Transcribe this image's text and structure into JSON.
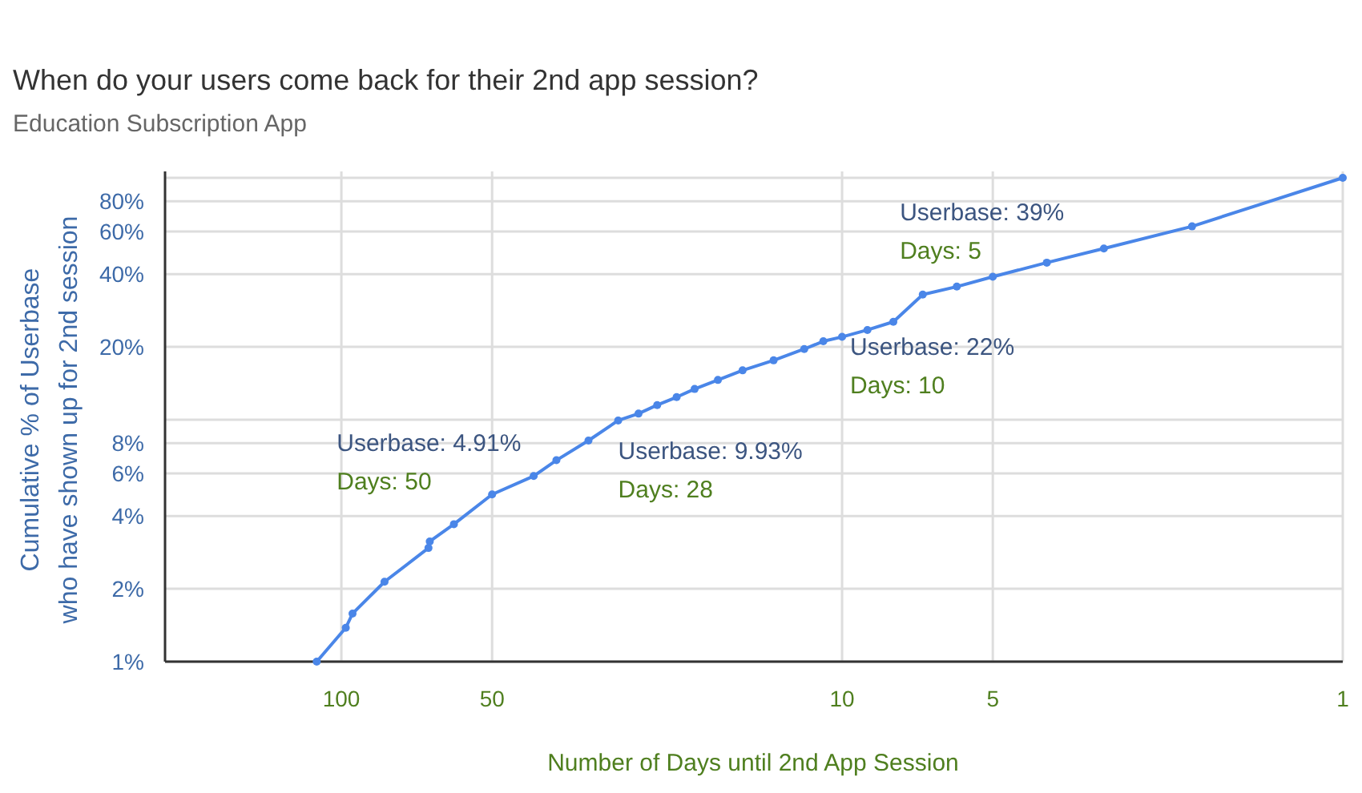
{
  "chart_data": {
    "type": "line",
    "title": "When do your users come back for their 2nd app session?",
    "subtitle": "Education Subscription App",
    "xlabel": "Number of Days until 2nd App Session",
    "ylabel": "Cumulative % of Userbase\nwho have shown up for 2nd session",
    "log": "xy",
    "grid": true,
    "marker": "circle",
    "line_style": "solid",
    "xlim": [
      225,
      1
    ],
    "xticks": [
      100,
      50,
      10,
      5,
      1
    ],
    "ylim": [
      1,
      100
    ],
    "yticks": [
      {
        "value": 1,
        "label": "1%"
      },
      {
        "value": 2,
        "label": "2%"
      },
      {
        "value": 4,
        "label": "4%"
      },
      {
        "value": 6,
        "label": "6%"
      },
      {
        "value": 8,
        "label": "8%"
      },
      {
        "value": 10,
        "label": null
      },
      {
        "value": 20,
        "label": "20%"
      },
      {
        "value": 40,
        "label": "40%"
      },
      {
        "value": 60,
        "label": "60%"
      },
      {
        "value": 80,
        "label": "80%"
      },
      {
        "value": 100,
        "label": null
      }
    ],
    "x": [
      112,
      98,
      95,
      82,
      67,
      66.6,
      59.6,
      50,
      41.3,
      37.2,
      32.1,
      28,
      25.5,
      23.4,
      21.4,
      19.7,
      17.7,
      15.8,
      13.7,
      11.9,
      10.9,
      10,
      8.9,
      7.9,
      6.9,
      5.9,
      5,
      3.9,
      3,
      2,
      1
    ],
    "series": [
      {
        "color": "#4a86e8",
        "values": [
          1,
          1.38,
          1.58,
          2.14,
          2.95,
          3.14,
          3.7,
          4.91,
          5.85,
          6.8,
          8.2,
          9.93,
          10.6,
          11.5,
          12.4,
          13.4,
          14.6,
          16,
          17.6,
          19.6,
          21.1,
          22,
          23.5,
          25.4,
          32.9,
          35.5,
          39,
          44.6,
          51,
          63,
          100
        ]
      }
    ],
    "annotations": [
      {
        "text": "Userbase: 4.91%\nDays: 50",
        "x": 50,
        "y": 4.91
      },
      {
        "text": "Userbase: 9.93%\nDays: 28",
        "x": 28,
        "y": 9.93
      },
      {
        "text": "Userbase: 22%\nDays: 10",
        "x": 10,
        "y": 22
      },
      {
        "text": "Userbase: 39%\nDays: 5",
        "x": 5,
        "y": 39
      }
    ]
  }
}
